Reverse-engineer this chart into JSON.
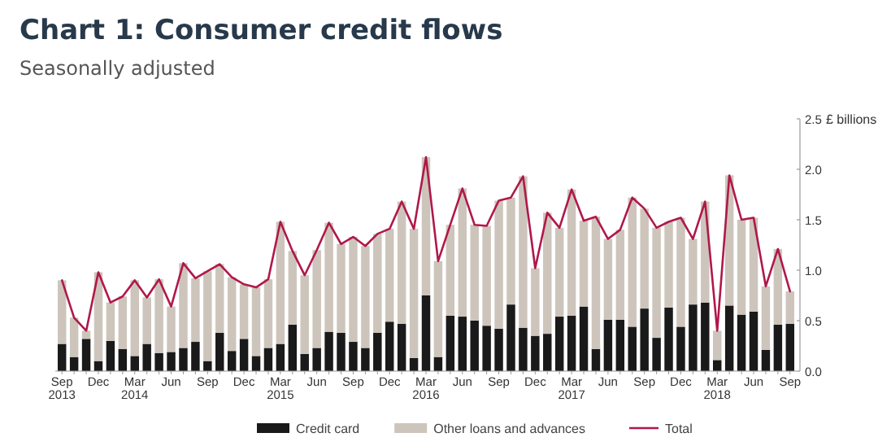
{
  "chart_data": {
    "type": "bar",
    "title": "Chart 1: Consumer credit flows",
    "subtitle": "Seasonally adjusted",
    "ylabel": "£ billions",
    "stacked": true,
    "legend": "bottom",
    "categories": [
      "Sep 2013",
      null,
      null,
      "Dec",
      null,
      null,
      "Mar 2014",
      null,
      null,
      "Jun",
      null,
      null,
      "Sep",
      null,
      null,
      "Dec",
      null,
      null,
      "Mar 2015",
      null,
      null,
      "Jun",
      null,
      null,
      "Sep",
      null,
      null,
      "Dec",
      null,
      null,
      "Mar 2016",
      null,
      null,
      "Jun",
      null,
      null,
      "Sep",
      null,
      null,
      "Dec",
      null,
      null,
      "Mar 2017",
      null,
      null,
      "Jun",
      null,
      null,
      "Sep",
      null,
      null,
      "Dec",
      null,
      null,
      "Mar 2018",
      null,
      null,
      "Jun",
      null,
      null,
      "Sep"
    ],
    "ylim": [
      0,
      2.5
    ],
    "yticks": [
      {
        "value": 0,
        "label": "0.0"
      },
      {
        "value": 0.5,
        "label": "0.5"
      },
      {
        "value": 1,
        "label": "1.0"
      },
      {
        "value": 1.5,
        "label": "1.5"
      },
      {
        "value": 2,
        "label": "2.0"
      },
      {
        "value": 2.5,
        "label": "2.5"
      }
    ],
    "series": [
      {
        "name": "Credit card",
        "color": "#1a1a1a",
        "values": [
          0.27,
          0.14,
          0.32,
          0.1,
          0.3,
          0.22,
          0.15,
          0.27,
          0.18,
          0.19,
          0.23,
          0.29,
          0.1,
          0.38,
          0.2,
          0.32,
          0.15,
          0.23,
          0.27,
          0.46,
          0.17,
          0.23,
          0.39,
          0.38,
          0.29,
          0.23,
          0.38,
          0.49,
          0.47,
          0.13,
          0.75,
          0.14,
          0.55,
          0.54,
          0.5,
          0.45,
          0.42,
          0.66,
          0.43,
          0.35,
          0.37,
          0.54,
          0.55,
          0.64,
          0.22,
          0.51,
          0.51,
          0.44,
          0.62,
          0.33,
          0.63,
          0.44,
          0.66,
          0.68,
          0.11,
          0.65,
          0.56,
          0.59,
          0.21,
          0.46,
          0.47
        ]
      },
      {
        "name": "Other loans and advances",
        "color": "#cdc5bb",
        "values": [
          0.63,
          0.39,
          0.08,
          0.88,
          0.38,
          0.52,
          0.75,
          0.46,
          0.73,
          0.45,
          0.84,
          0.63,
          0.89,
          0.68,
          0.73,
          0.54,
          0.68,
          0.68,
          1.21,
          0.73,
          0.78,
          0.97,
          1.08,
          0.88,
          1.04,
          1.01,
          0.98,
          0.92,
          1.21,
          1.28,
          1.37,
          0.95,
          0.9,
          1.27,
          0.95,
          0.99,
          1.27,
          1.06,
          1.5,
          0.67,
          1.2,
          0.88,
          1.25,
          0.85,
          1.31,
          0.8,
          0.89,
          1.28,
          0.99,
          1.09,
          0.85,
          1.08,
          0.65,
          1.0,
          0.29,
          1.29,
          0.94,
          0.93,
          0.63,
          0.75,
          0.32
        ]
      },
      {
        "name": "Total",
        "type": "line",
        "color": "#b0184a",
        "values": [
          0.9,
          0.53,
          0.4,
          0.98,
          0.68,
          0.74,
          0.9,
          0.73,
          0.91,
          0.64,
          1.07,
          0.92,
          0.99,
          1.06,
          0.93,
          0.86,
          0.83,
          0.91,
          1.48,
          1.19,
          0.95,
          1.2,
          1.47,
          1.26,
          1.33,
          1.24,
          1.36,
          1.41,
          1.68,
          1.41,
          2.12,
          1.09,
          1.45,
          1.81,
          1.45,
          1.44,
          1.69,
          1.72,
          1.93,
          1.02,
          1.57,
          1.42,
          1.8,
          1.49,
          1.53,
          1.31,
          1.4,
          1.72,
          1.61,
          1.42,
          1.48,
          1.52,
          1.31,
          1.68,
          0.4,
          1.94,
          1.5,
          1.52,
          0.84,
          1.21,
          0.79
        ]
      }
    ]
  }
}
